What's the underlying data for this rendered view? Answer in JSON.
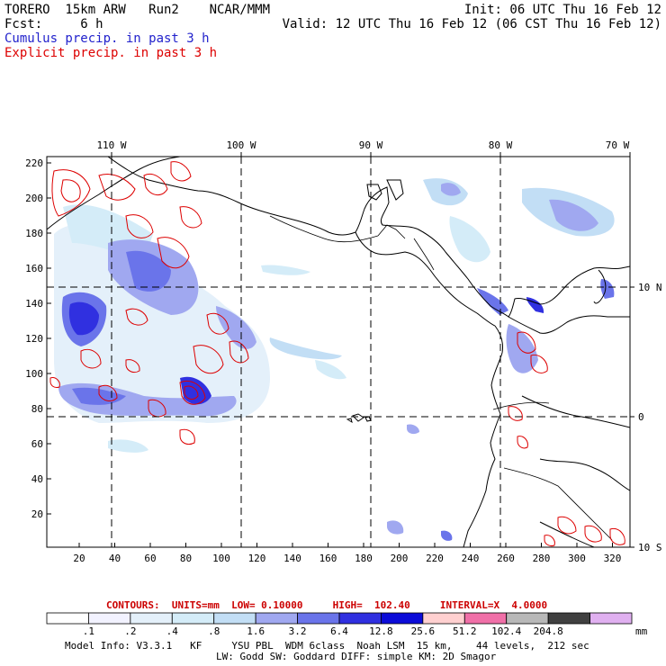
{
  "header": {
    "line1_left": "TORERO  15km ARW   Run2    NCAR/MMM",
    "line1_right": "Init: 06 UTC Thu 16 Feb 12",
    "line2_left": "Fcst:     6 h",
    "line2_right": "Valid: 12 UTC Thu 16 Feb 12 (06 CST Thu 16 Feb 12)",
    "cumulus_label": "Cumulus precip. in past 3 h",
    "explicit_label": "Explicit precip. in past 3 h"
  },
  "colors": {
    "cumulus": "#2222cc",
    "explicit": "#dd0000",
    "map_lines": "#000000"
  },
  "top_axis": {
    "labels": [
      "110 W",
      "100 W",
      "90 W",
      "80 W",
      "70 W"
    ]
  },
  "right_axis": {
    "labels": [
      "10 N",
      "0",
      "10 S"
    ]
  },
  "left_axis": {
    "labels": [
      "220",
      "200",
      "180",
      "160",
      "140",
      "120",
      "100",
      "80",
      "60",
      "40",
      "20"
    ]
  },
  "bottom_axis": {
    "labels": [
      "20",
      "40",
      "60",
      "80",
      "100",
      "120",
      "140",
      "160",
      "180",
      "200",
      "220",
      "240",
      "260",
      "280",
      "300",
      "320"
    ]
  },
  "contours_info": "CONTOURS:  UNITS=mm  LOW= 0.10000     HIGH=  102.40     INTERVAL=X  4.0000",
  "colorbar": {
    "labels": [
      ".1",
      ".2",
      ".4",
      ".8",
      "1.6",
      "3.2",
      "6.4",
      "12.8",
      "25.6",
      "51.2",
      "102.4",
      "204.8"
    ],
    "units": "mm",
    "colors": [
      "#ffffff",
      "#f2f2ff",
      "#e4f0fa",
      "#d4ecf8",
      "#c2def5",
      "#a0a8f0",
      "#6a74ea",
      "#3030e0",
      "#0c0cd8",
      "#ffd0d0",
      "#f070a8",
      "#b8b8b8",
      "#404040",
      "#e0b0f0"
    ]
  },
  "model_info": {
    "line1": "Model Info: V3.3.1   KF     YSU PBL  WDM 6class  Noah LSM  15 km,    44 levels,  212 sec",
    "line2": "LW: Godd SW: Goddard DIFF: simple KM: 2D Smagor"
  }
}
